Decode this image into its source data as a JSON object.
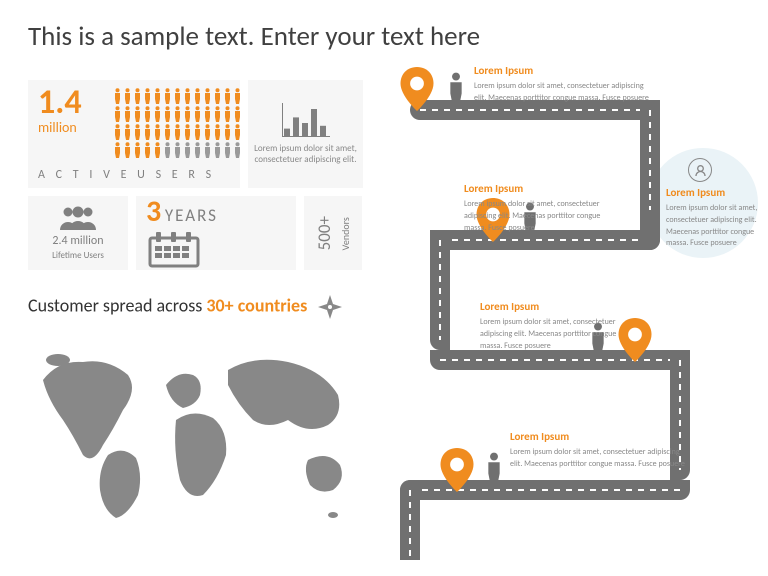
{
  "title": "This is a sample text. Enter your text here",
  "colors": {
    "accent": "#f08c1f",
    "gray": "#808080",
    "black": "#333333",
    "bg_block": "#f6f6f6",
    "road": "#707070",
    "circle_bg": "#eaf3f7"
  },
  "active_users": {
    "number": "1.4",
    "unit": "million",
    "label": "A C T I V E   U S E R S",
    "people": {
      "rows": 4,
      "cols": 13,
      "filled": 44,
      "fill_color": "#f08c1f",
      "empty_color": "#9a9a9a"
    }
  },
  "chart_box": {
    "caption": "Lorem ipsum dolor sit amet, consectetuer adipiscing elit.",
    "bars": [
      6,
      14,
      10,
      20,
      8
    ],
    "bar_color": "#808080"
  },
  "lifetime_users": {
    "number": "2.4 million",
    "label": "Lifetime Users",
    "icon_color": "#808080"
  },
  "years": {
    "number": "3",
    "label": "YEARS",
    "icon_color": "#808080"
  },
  "vendors": {
    "number": "500+",
    "label": "Vendors"
  },
  "countries": {
    "prefix": "Customer spread across ",
    "highlight": "30+ countries"
  },
  "world_map": {
    "fill": "#888888"
  },
  "road": {
    "width": 20,
    "stops": [
      {
        "title": "Lorem Ipsum",
        "desc": "Lorem ipsum dolor sit amet, consectetuer adipiscing elit. Maecenas porttitor congue massa. Fusce posuere"
      },
      {
        "title": "Lorem Ipsum",
        "desc": "Lorem ipsum dolor sit amet, consectetuer adipiscing elit. Maecenas porttitor congue massa. Fusce posuere"
      },
      {
        "title": "Lorem Ipsum",
        "desc": "Lorem ipsum dolor sit amet, consectetuer adipiscing elit. Maecenas porttitor congue massa. Fusce posuere"
      },
      {
        "title": "Lorem Ipsum",
        "desc": "Lorem ipsum dolor sit amet, consectetuer adipiscing elit. Maecenas porttitor congue massa. Fusce posuere"
      },
      {
        "title": "Lorem Ipsum",
        "desc": "Lorem ipsum dolor sit amet, consectetuer adipiscing elit. Maecenas porttitor congue massa. Fusce posuere"
      }
    ]
  }
}
